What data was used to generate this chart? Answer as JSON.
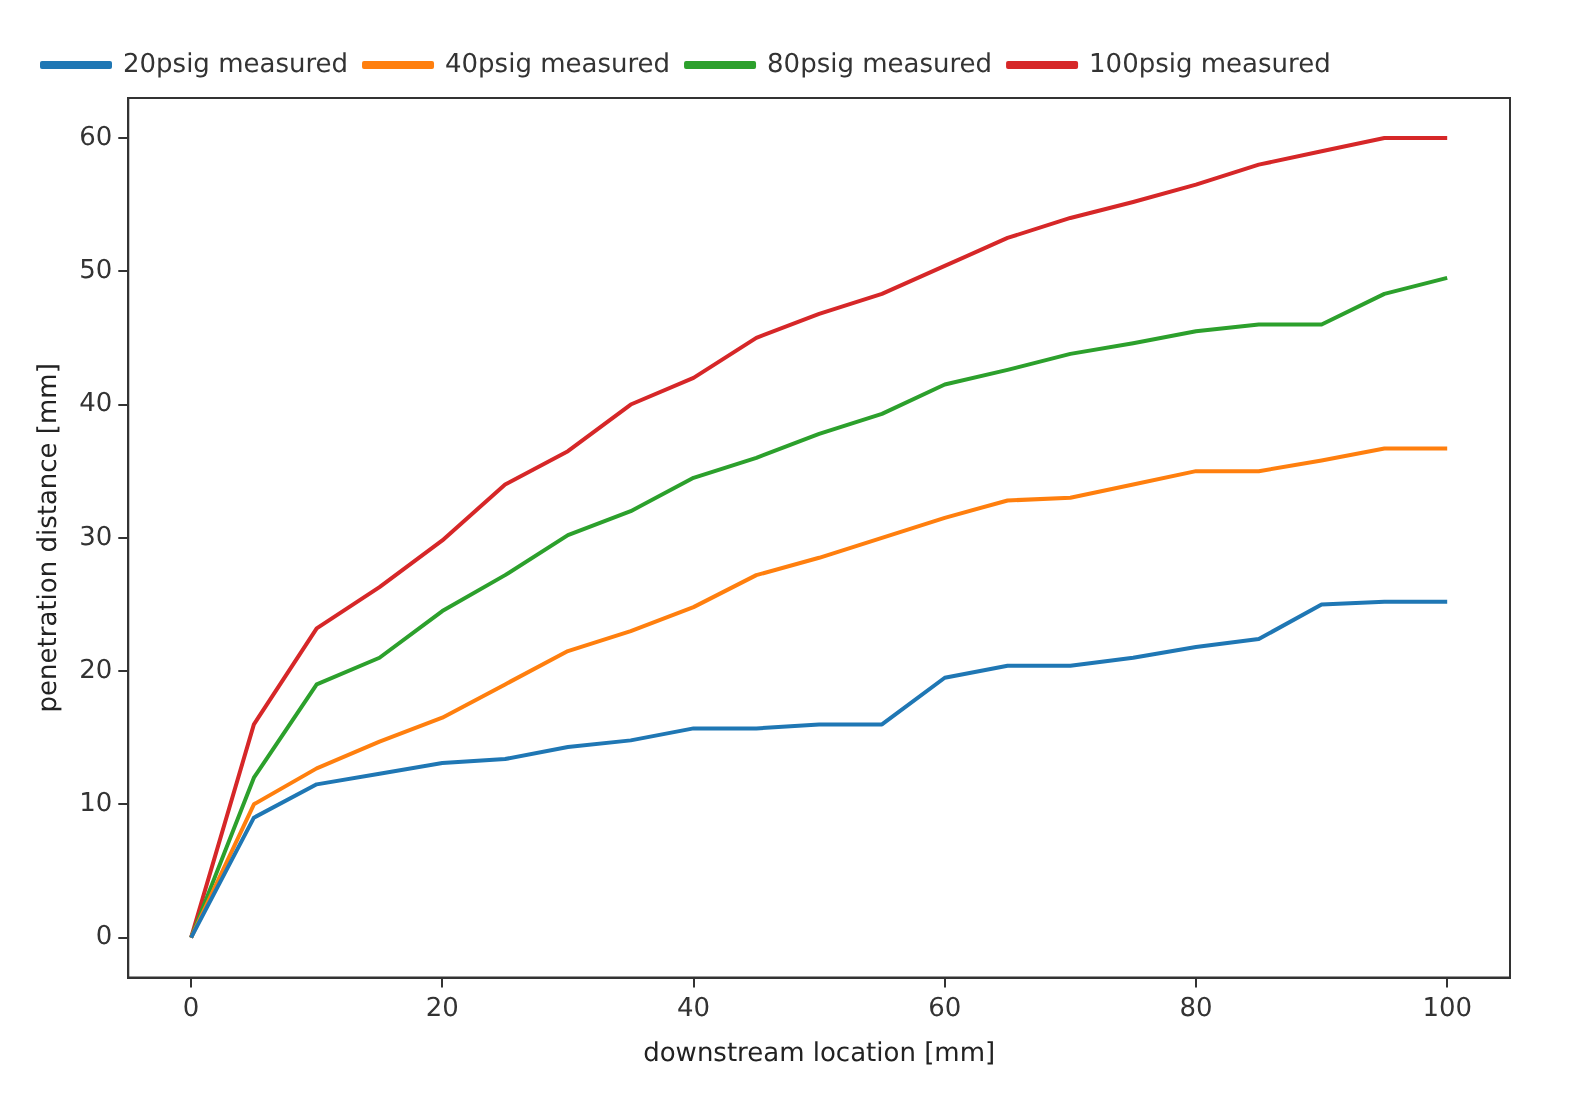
{
  "chart_data": {
    "type": "line",
    "xlabel": "downstream location [mm]",
    "ylabel": "penetration distance [mm]",
    "x": [
      0,
      5,
      10,
      15,
      20,
      25,
      30,
      35,
      40,
      45,
      50,
      55,
      60,
      65,
      70,
      75,
      80,
      85,
      90,
      95,
      100
    ],
    "series": [
      {
        "name": "20psig measured",
        "color": "#1f77b4",
        "values": [
          0,
          9,
          11.5,
          12.3,
          13.1,
          13.4,
          14.3,
          14.8,
          15.7,
          15.7,
          16,
          16,
          19.5,
          20.4,
          20.4,
          21,
          21.8,
          22.4,
          25,
          25.2,
          25.2
        ]
      },
      {
        "name": "40psig measured",
        "color": "#ff7f0e",
        "values": [
          0,
          10,
          12.7,
          14.7,
          16.5,
          19,
          21.5,
          23,
          24.8,
          27.2,
          28.5,
          30,
          31.5,
          32.8,
          33,
          34,
          35,
          35,
          35.8,
          36.7,
          36.7
        ]
      },
      {
        "name": "80psig measured",
        "color": "#2ca02c",
        "values": [
          0,
          12,
          19,
          21,
          24.5,
          27.2,
          30.2,
          32,
          34.5,
          36,
          37.8,
          39.3,
          41.5,
          42.6,
          43.8,
          44.6,
          45.5,
          46,
          46,
          48.3,
          49.5
        ]
      },
      {
        "name": "100psig measured",
        "color": "#d62728",
        "values": [
          0,
          16,
          23.2,
          26.3,
          29.8,
          34,
          36.5,
          40,
          42,
          45,
          46.8,
          48.3,
          50.4,
          52.5,
          54,
          55.2,
          56.5,
          58,
          59,
          60,
          60
        ]
      }
    ],
    "xlim": [
      -5,
      105
    ],
    "xticks": [
      0,
      20,
      40,
      60,
      80,
      100
    ],
    "ylim": [
      -3,
      63
    ],
    "yticks": [
      0,
      10,
      20,
      30,
      40,
      50,
      60
    ],
    "grid": false,
    "legend": "top left",
    "marker": "none",
    "line_style": "solid"
  }
}
